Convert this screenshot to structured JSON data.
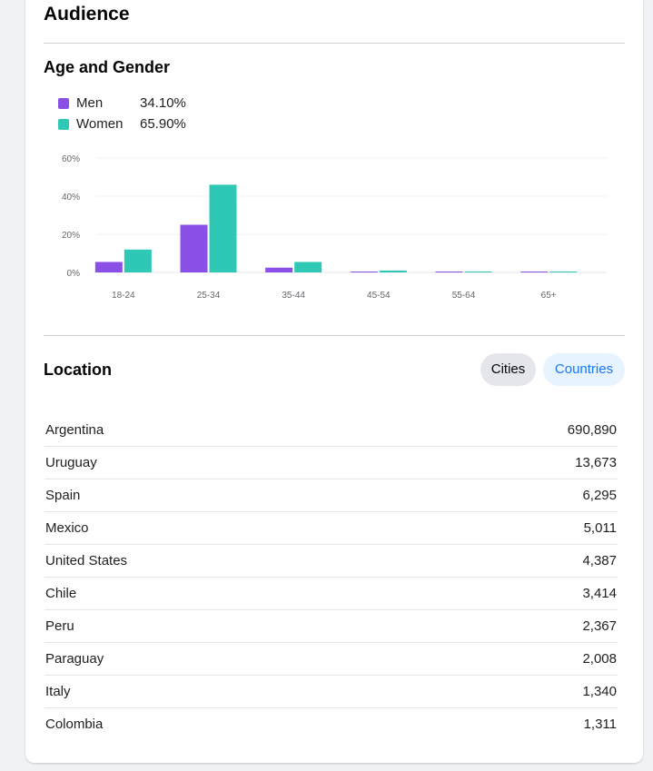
{
  "audience": {
    "title": "Audience"
  },
  "age_gender": {
    "title": "Age and Gender",
    "legend": [
      {
        "label": "Men",
        "value": "34.10%",
        "color": "#8a4fe6"
      },
      {
        "label": "Women",
        "value": "65.90%",
        "color": "#2ec8b5"
      }
    ]
  },
  "chart_data": {
    "type": "bar",
    "categories": [
      "18-24",
      "25-34",
      "35-44",
      "45-54",
      "55-64",
      "65+"
    ],
    "series": [
      {
        "name": "Men",
        "color": "#8a4fe6",
        "values": [
          5.5,
          25,
          2.5,
          0.4,
          0.3,
          0.3
        ]
      },
      {
        "name": "Women",
        "color": "#2ec8b5",
        "values": [
          12,
          46,
          5.5,
          1,
          0.5,
          0.4
        ]
      }
    ],
    "y_ticks": [
      "0%",
      "20%",
      "40%",
      "60%"
    ],
    "ylim": [
      0,
      60
    ],
    "grid": true
  },
  "location": {
    "title": "Location",
    "tabs": [
      {
        "label": "Cities",
        "selected": true
      },
      {
        "label": "Countries",
        "selected": false
      }
    ],
    "rows": [
      {
        "name": "Argentina",
        "value": "690,890"
      },
      {
        "name": "Uruguay",
        "value": "13,673"
      },
      {
        "name": "Spain",
        "value": "6,295"
      },
      {
        "name": "Mexico",
        "value": "5,011"
      },
      {
        "name": "United States",
        "value": "4,387"
      },
      {
        "name": "Chile",
        "value": "3,414"
      },
      {
        "name": "Peru",
        "value": "2,367"
      },
      {
        "name": "Paraguay",
        "value": "2,008"
      },
      {
        "name": "Italy",
        "value": "1,340"
      },
      {
        "name": "Colombia",
        "value": "1,311"
      }
    ]
  }
}
